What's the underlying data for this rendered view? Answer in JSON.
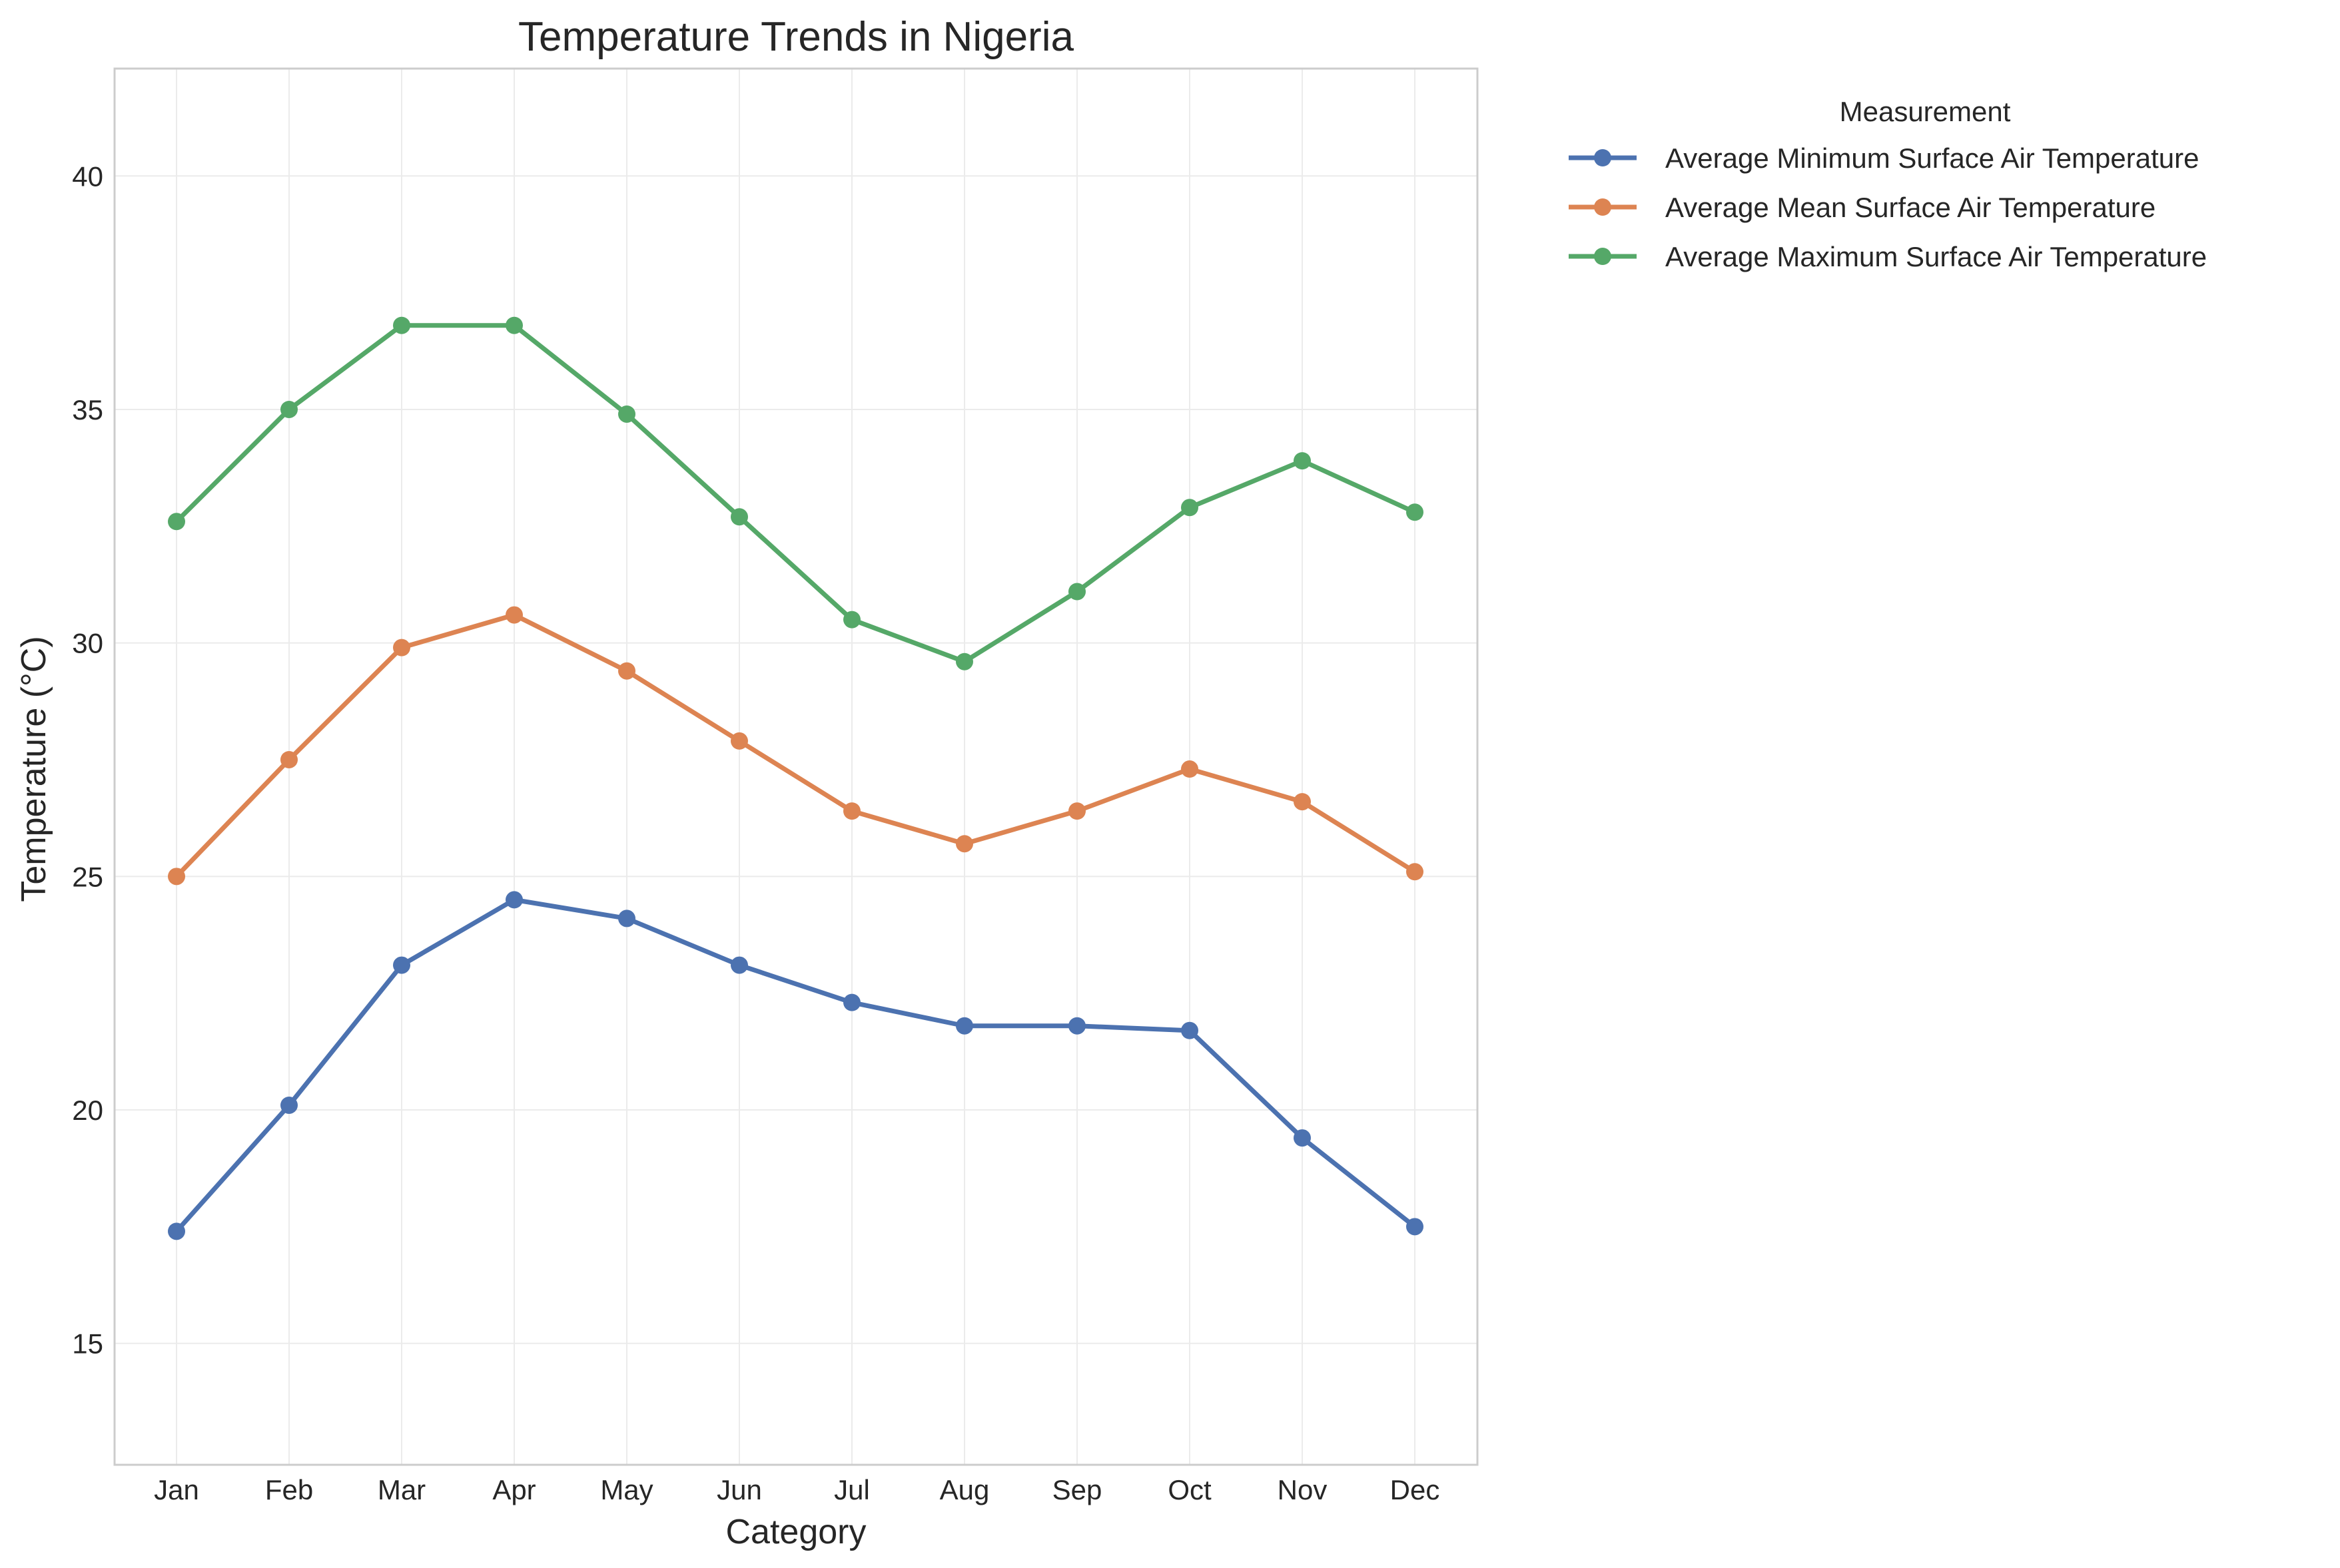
{
  "chart_data": {
    "type": "line",
    "title": "Temperature Trends in Nigeria",
    "xlabel": "Category",
    "ylabel": "Temperature (°C)",
    "categories": [
      "Jan",
      "Feb",
      "Mar",
      "Apr",
      "May",
      "Jun",
      "Jul",
      "Aug",
      "Sep",
      "Oct",
      "Nov",
      "Dec"
    ],
    "ylim": [
      12.4,
      42.3
    ],
    "yticks": [
      15,
      20,
      25,
      30,
      35,
      40
    ],
    "grid": true,
    "legend": {
      "title": "Measurement",
      "placement": "outside right"
    },
    "series": [
      {
        "name": "Average Minimum Surface Air Temperature",
        "color": "#4c72b0",
        "values": [
          17.4,
          20.1,
          23.1,
          24.5,
          24.1,
          23.1,
          22.3,
          21.8,
          21.8,
          21.7,
          19.4,
          17.5
        ]
      },
      {
        "name": "Average Mean Surface Air Temperature",
        "color": "#dd8452",
        "values": [
          25.0,
          27.5,
          29.9,
          30.6,
          29.4,
          27.9,
          26.4,
          25.7,
          26.4,
          27.3,
          26.6,
          25.1
        ]
      },
      {
        "name": "Average Maximum Surface Air Temperature",
        "color": "#55a868",
        "values": [
          32.6,
          35.0,
          36.8,
          36.8,
          34.9,
          32.7,
          30.5,
          29.6,
          31.1,
          32.9,
          33.9,
          32.8
        ]
      }
    ]
  }
}
